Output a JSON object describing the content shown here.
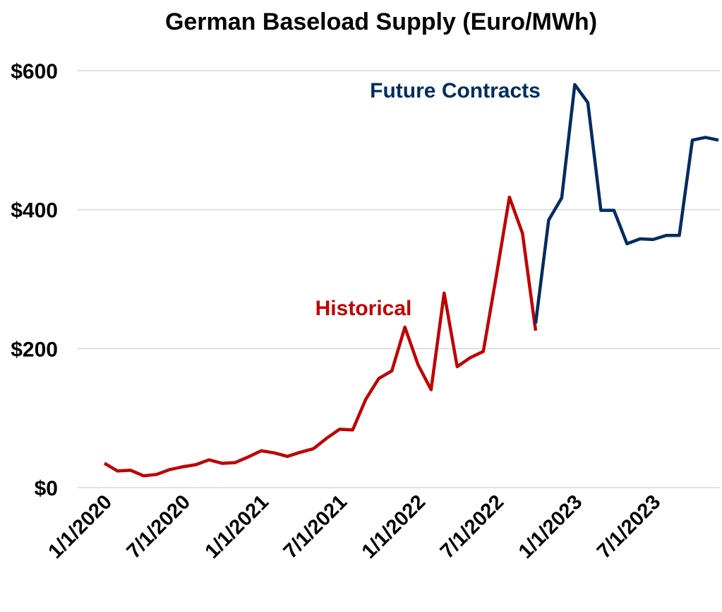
{
  "chart_data": {
    "type": "line",
    "title": "German Baseload Supply (Euro/MWh)",
    "categories": [
      "1/1/2020",
      null,
      null,
      null,
      null,
      null,
      "7/1/2020",
      null,
      null,
      null,
      null,
      null,
      "1/1/2021",
      null,
      null,
      null,
      null,
      null,
      "7/1/2021",
      null,
      null,
      null,
      null,
      null,
      "1/1/2022",
      null,
      null,
      null,
      null,
      null,
      "7/1/2022",
      null,
      null,
      null,
      null,
      null,
      "1/1/2023",
      null,
      null,
      null,
      null,
      null,
      "7/1/2023",
      null,
      null,
      null,
      null,
      null
    ],
    "series": [
      {
        "name": "Historical",
        "color": "#c00000",
        "values": [
          35,
          24,
          25,
          17,
          19,
          26,
          30,
          33,
          40,
          35,
          36,
          44,
          53,
          50,
          45,
          51,
          56,
          71,
          84,
          83,
          127,
          157,
          168,
          231,
          177,
          141,
          280,
          174,
          187,
          196,
          305,
          418,
          366,
          226,
          null,
          null,
          null,
          null,
          null,
          null,
          null,
          null,
          null,
          null,
          null,
          null,
          null,
          null
        ]
      },
      {
        "name": "Future Contracts",
        "color": "#002c5f",
        "values": [
          null,
          null,
          null,
          null,
          null,
          null,
          null,
          null,
          null,
          null,
          null,
          null,
          null,
          null,
          null,
          null,
          null,
          null,
          null,
          null,
          null,
          null,
          null,
          null,
          null,
          null,
          null,
          null,
          null,
          null,
          null,
          null,
          null,
          236,
          385,
          417,
          580,
          554,
          399,
          399,
          351,
          358,
          357,
          363,
          363,
          500,
          504,
          500
        ]
      }
    ],
    "ylim": [
      0,
      600
    ],
    "yticks": [
      {
        "value": 0,
        "label": "$0"
      },
      {
        "value": 200,
        "label": "$200"
      },
      {
        "value": 400,
        "label": "$400"
      },
      {
        "value": 600,
        "label": "$600"
      }
    ],
    "grid": true
  }
}
